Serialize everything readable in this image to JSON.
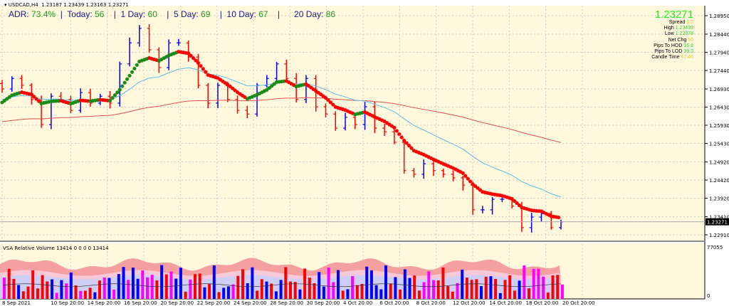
{
  "header": {
    "symbol": "USDCAD,H4",
    "ohlc": "1.23187 1.23439 1.23163 1.23271"
  },
  "adr": {
    "adr_label": "ADR:",
    "adr_value": "73.4%",
    "today_label": "Today:",
    "today_value": "56",
    "d1_label": "1 Day:",
    "d1_value": "60",
    "d5_label": "5 Day:",
    "d5_value": "69",
    "d10_label": "10 Day:",
    "d10_value": "67",
    "d20_label": "20 Day:",
    "d20_value": "86"
  },
  "info": {
    "price": "1.23271",
    "spread_label": "Spread",
    "spread": "1.2",
    "high_label": "High",
    "high": "1.23439",
    "low_label": "Low",
    "low": "1.22878",
    "netchg_label": "Net Chg",
    "netchg": "56",
    "hod_label": "Pips To HOD",
    "hod": "16.8",
    "lod_label": "Pips To LOD",
    "lod": "39.3",
    "candle_label": "Candle Time",
    "candle": "67:40"
  },
  "volume_panel": {
    "title": "VSA Relative Volume 13414 0 0 0 0 13414",
    "max_label": "77055",
    "min_label": "0"
  },
  "colors": {
    "background": "#fff8dc",
    "bull": "#0000ff",
    "bear": "#ff0000",
    "ma_up": "#1a8a1a",
    "ma_down": "#ff0000",
    "ma_fast": "#5bc0de",
    "ma_slow": "#e05050",
    "vol_climax": "#ff00ff"
  },
  "chart_data": {
    "type": "ohlc",
    "symbol": "USDCAD",
    "timeframe": "H4",
    "y_ticks": [
      "1.28950",
      "1.28440",
      "1.27940",
      "1.27440",
      "1.26930",
      "1.26430",
      "1.25930",
      "1.25430",
      "1.24920",
      "1.24420",
      "1.23920",
      "1.23410",
      "1.22910"
    ],
    "current_price": "1.23271",
    "x_ticks": [
      "8 Sep 2021",
      "10 Sep 20:00",
      "14 Sep 20:00",
      "16 Sep 20:00",
      "20 Sep 20:00",
      "22 Sep 20:00",
      "24 Sep 20:00",
      "28 Sep 20:00",
      "30 Sep 20:00",
      "4 Oct 20:00",
      "6 Oct 20:00",
      "8 Oct 20:00",
      "12 Oct 20:00",
      "14 Oct 20:00",
      "18 Oct 20:00",
      "20 Oct 20:00"
    ],
    "closes": [
      1.2693,
      1.2722,
      1.2703,
      1.2664,
      1.2595,
      1.2673,
      1.2664,
      1.2634,
      1.2683,
      1.2654,
      1.2673,
      1.2654,
      1.2762,
      1.282,
      1.286,
      1.2801,
      1.2752,
      1.282,
      1.282,
      1.2781,
      1.2703,
      1.2654,
      1.2703,
      1.2664,
      1.2634,
      1.2624,
      1.2703,
      1.2722,
      1.2762,
      1.2722,
      1.2664,
      1.2722,
      1.2644,
      1.2624,
      1.2585,
      1.2615,
      1.2595,
      1.2644,
      1.2585,
      1.2575,
      1.2546,
      1.2468,
      1.2458,
      1.2487,
      1.2468,
      1.2458,
      1.2448,
      1.2428,
      1.236,
      1.236,
      1.2389,
      1.2389,
      1.237,
      1.2311,
      1.234,
      1.235,
      1.2311,
      1.2327
    ],
    "volume_ylim": [
      0,
      77055
    ],
    "grid": true
  }
}
